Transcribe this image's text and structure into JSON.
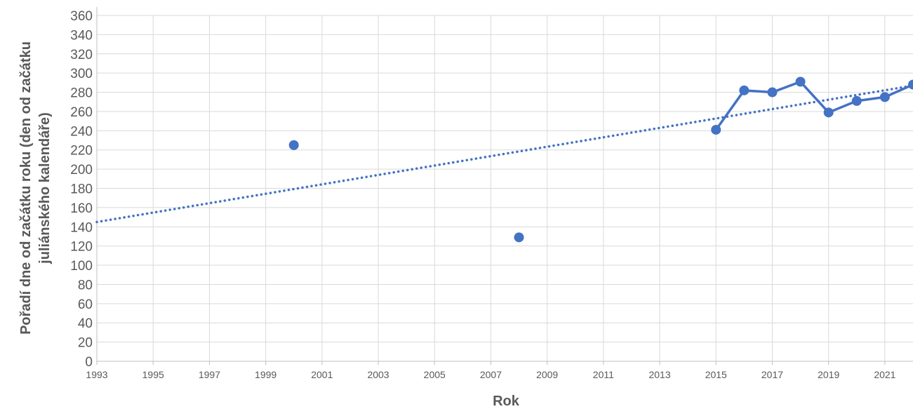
{
  "chart_data": {
    "type": "scatter",
    "xlabel": "Rok",
    "ylabel_lines": [
      "Pořadí dne od začátku roku  (den od začátku",
      "juliánského kalendáře)"
    ],
    "xlim": [
      1993,
      2022
    ],
    "ylim": [
      0,
      360
    ],
    "x_ticks": [
      1993,
      1995,
      1997,
      1999,
      2001,
      2003,
      2005,
      2007,
      2009,
      2011,
      2013,
      2015,
      2017,
      2019,
      2021
    ],
    "y_ticks": [
      0,
      20,
      40,
      60,
      80,
      100,
      120,
      140,
      160,
      180,
      200,
      220,
      240,
      260,
      280,
      300,
      320,
      340,
      360
    ],
    "grid": true,
    "legend": "none",
    "series": [
      {
        "values": [
          {
            "x": 2000,
            "y": 225
          },
          {
            "x": 2008,
            "y": 129
          },
          {
            "x": 2015,
            "y": 241
          },
          {
            "x": 2016,
            "y": 282
          },
          {
            "x": 2017,
            "y": 280
          },
          {
            "x": 2018,
            "y": 291
          },
          {
            "x": 2019,
            "y": 259
          },
          {
            "x": 2020,
            "y": 271
          },
          {
            "x": 2021,
            "y": 275
          },
          {
            "x": 2022,
            "y": 288
          }
        ],
        "line_from_x": 2015,
        "color": "#4472C4"
      }
    ],
    "trendline": {
      "type": "linear",
      "style": "dotted",
      "color": "#4472C4",
      "points": [
        {
          "x": 1993,
          "y": 145
        },
        {
          "x": 2022,
          "y": 287
        }
      ]
    }
  }
}
